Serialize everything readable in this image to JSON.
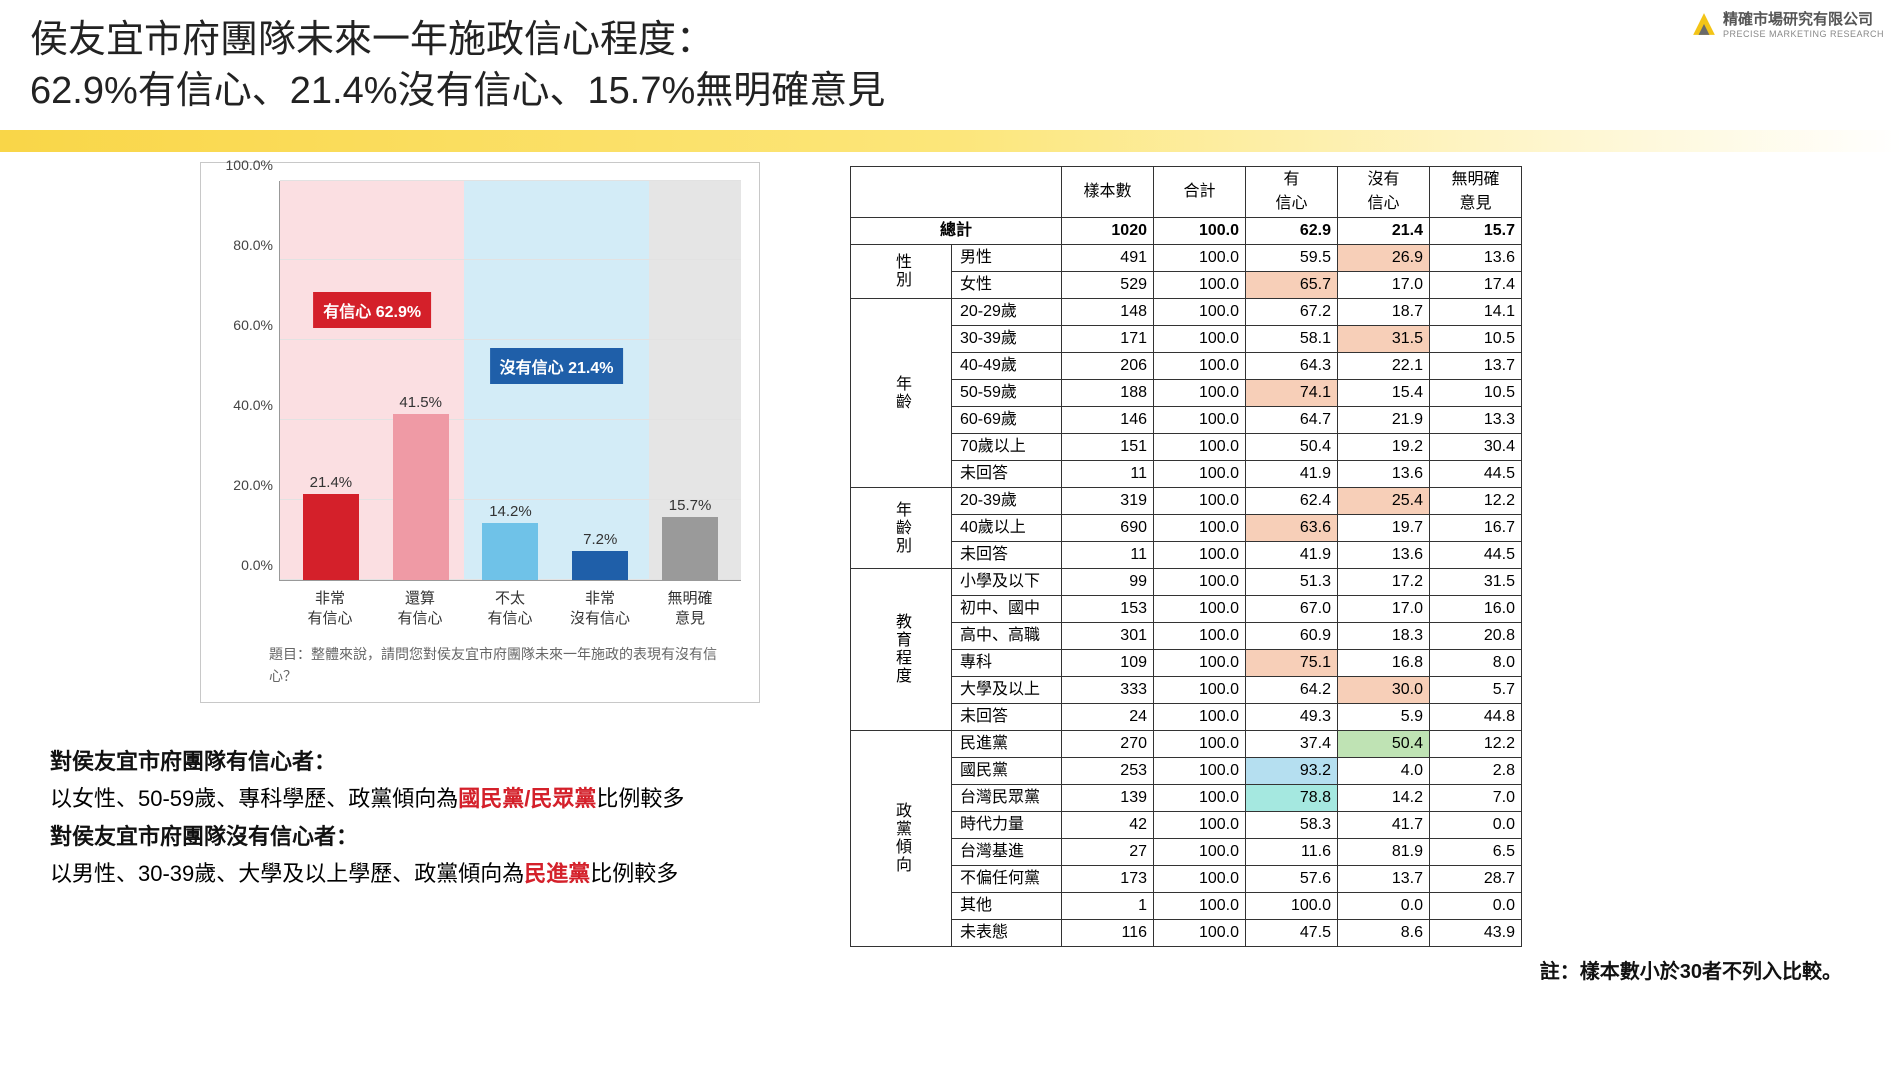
{
  "logo": {
    "cn": "精確市場研究有限公司",
    "en": "PRECISE MARKETING RESEARCH"
  },
  "title_line1": "侯友宜市府團隊未來一年施政信心程度：",
  "title_line2": "62.9%有信心、21.4%沒有信心、15.7%無明確意見",
  "chart": {
    "type": "bar",
    "ylim": [
      0,
      100
    ],
    "ytick_step": 20,
    "yticks": [
      "0.0%",
      "20.0%",
      "40.0%",
      "60.0%",
      "80.0%",
      "100.0%"
    ],
    "background_color": "#ffffff",
    "grid_color": "#e2e2e2",
    "bars": [
      {
        "label_l1": "非常",
        "label_l2": "有信心",
        "value": 21.4,
        "text": "21.4%",
        "color": "#d4202a"
      },
      {
        "label_l1": "還算",
        "label_l2": "有信心",
        "value": 41.5,
        "text": "41.5%",
        "color": "#ef9aa5"
      },
      {
        "label_l1": "不太",
        "label_l2": "有信心",
        "value": 14.2,
        "text": "14.2%",
        "color": "#6fc2e8"
      },
      {
        "label_l1": "非常",
        "label_l2": "沒有信心",
        "value": 7.2,
        "text": "7.2%",
        "color": "#1f5fa9"
      },
      {
        "label_l1": "無明確",
        "label_l2": "意見",
        "value": 15.7,
        "text": "15.7%",
        "color": "#9a9a9a"
      }
    ],
    "group_tags": [
      {
        "text": "有信心 62.9%",
        "color": "#d4202a",
        "bg_span": [
          0,
          1
        ],
        "top_pct": 28
      },
      {
        "text": "沒有信心 21.4%",
        "color": "#1f5fa9",
        "bg_span": [
          2,
          3
        ],
        "top_pct": 42
      }
    ],
    "group_backgrounds": [
      {
        "span": [
          0,
          1
        ],
        "color": "#fbdfe2"
      },
      {
        "span": [
          2,
          3
        ],
        "color": "#d3ecf7"
      },
      {
        "span": [
          4,
          4
        ],
        "color": "#e5e5e5"
      }
    ],
    "note": "題目：整體來說，請問您對侯友宜市府團隊未來一年施政的表現有沒有信心？"
  },
  "summary": {
    "line1_bold": "對侯友宜市府團隊有信心者：",
    "line2_a": "以女性、50-59歲、專科學歷、政黨傾向為",
    "line2_red": "國民黨/民眾黨",
    "line2_b": "比例較多",
    "line3_bold": "對侯友宜市府團隊沒有信心者：",
    "line4_a": "以男性、30-39歲、大學及以上學歷、政黨傾向為",
    "line4_red": "民進黨",
    "line4_b": "比例較多"
  },
  "table": {
    "headers": [
      "樣本數",
      "合計",
      "有\n信心",
      "沒有\n信心",
      "無明確\n意見"
    ],
    "total_label": "總計",
    "total": [
      "1020",
      "100.0",
      "62.9",
      "21.4",
      "15.7"
    ],
    "groups": [
      {
        "name": "性別",
        "rows": [
          {
            "label": "男性",
            "v": [
              "491",
              "100.0",
              "59.5",
              "26.9",
              "13.6"
            ],
            "hl": {
              "3": "orange"
            }
          },
          {
            "label": "女性",
            "v": [
              "529",
              "100.0",
              "65.7",
              "17.0",
              "17.4"
            ],
            "hl": {
              "2": "orange"
            }
          }
        ]
      },
      {
        "name": "年齡",
        "rows": [
          {
            "label": "20-29歲",
            "v": [
              "148",
              "100.0",
              "67.2",
              "18.7",
              "14.1"
            ]
          },
          {
            "label": "30-39歲",
            "v": [
              "171",
              "100.0",
              "58.1",
              "31.5",
              "10.5"
            ],
            "hl": {
              "3": "orange"
            }
          },
          {
            "label": "40-49歲",
            "v": [
              "206",
              "100.0",
              "64.3",
              "22.1",
              "13.7"
            ]
          },
          {
            "label": "50-59歲",
            "v": [
              "188",
              "100.0",
              "74.1",
              "15.4",
              "10.5"
            ],
            "hl": {
              "2": "orange"
            }
          },
          {
            "label": "60-69歲",
            "v": [
              "146",
              "100.0",
              "64.7",
              "21.9",
              "13.3"
            ]
          },
          {
            "label": "70歲以上",
            "v": [
              "151",
              "100.0",
              "50.4",
              "19.2",
              "30.4"
            ]
          },
          {
            "label": "未回答",
            "v": [
              "11",
              "100.0",
              "41.9",
              "13.6",
              "44.5"
            ]
          }
        ]
      },
      {
        "name": "年齡別",
        "rows": [
          {
            "label": "20-39歲",
            "v": [
              "319",
              "100.0",
              "62.4",
              "25.4",
              "12.2"
            ],
            "hl": {
              "3": "orange"
            }
          },
          {
            "label": "40歲以上",
            "v": [
              "690",
              "100.0",
              "63.6",
              "19.7",
              "16.7"
            ],
            "hl": {
              "2": "orange"
            }
          },
          {
            "label": "未回答",
            "v": [
              "11",
              "100.0",
              "41.9",
              "13.6",
              "44.5"
            ]
          }
        ]
      },
      {
        "name": "教育程度",
        "rows": [
          {
            "label": "小學及以下",
            "v": [
              "99",
              "100.0",
              "51.3",
              "17.2",
              "31.5"
            ]
          },
          {
            "label": "初中、國中",
            "v": [
              "153",
              "100.0",
              "67.0",
              "17.0",
              "16.0"
            ]
          },
          {
            "label": "高中、高職",
            "v": [
              "301",
              "100.0",
              "60.9",
              "18.3",
              "20.8"
            ]
          },
          {
            "label": "專科",
            "v": [
              "109",
              "100.0",
              "75.1",
              "16.8",
              "8.0"
            ],
            "hl": {
              "2": "orange"
            }
          },
          {
            "label": "大學及以上",
            "v": [
              "333",
              "100.0",
              "64.2",
              "30.0",
              "5.7"
            ],
            "hl": {
              "3": "orange"
            }
          },
          {
            "label": "未回答",
            "v": [
              "24",
              "100.0",
              "49.3",
              "5.9",
              "44.8"
            ]
          }
        ]
      },
      {
        "name": "政黨傾向",
        "rows": [
          {
            "label": "民進黨",
            "v": [
              "270",
              "100.0",
              "37.4",
              "50.4",
              "12.2"
            ],
            "hl": {
              "3": "green"
            }
          },
          {
            "label": "國民黨",
            "v": [
              "253",
              "100.0",
              "93.2",
              "4.0",
              "2.8"
            ],
            "hl": {
              "2": "blue"
            }
          },
          {
            "label": "台灣民眾黨",
            "v": [
              "139",
              "100.0",
              "78.8",
              "14.2",
              "7.0"
            ],
            "hl": {
              "2": "cyan"
            }
          },
          {
            "label": "時代力量",
            "v": [
              "42",
              "100.0",
              "58.3",
              "41.7",
              "0.0"
            ]
          },
          {
            "label": "台灣基進",
            "v": [
              "27",
              "100.0",
              "11.6",
              "81.9",
              "6.5"
            ]
          },
          {
            "label": "不偏任何黨",
            "v": [
              "173",
              "100.0",
              "57.6",
              "13.7",
              "28.7"
            ]
          },
          {
            "label": "其他",
            "v": [
              "1",
              "100.0",
              "100.0",
              "0.0",
              "0.0"
            ]
          },
          {
            "label": "未表態",
            "v": [
              "116",
              "100.0",
              "47.5",
              "8.6",
              "43.9"
            ]
          }
        ]
      }
    ]
  },
  "footnote": "註：樣本數小於30者不列入比較。"
}
